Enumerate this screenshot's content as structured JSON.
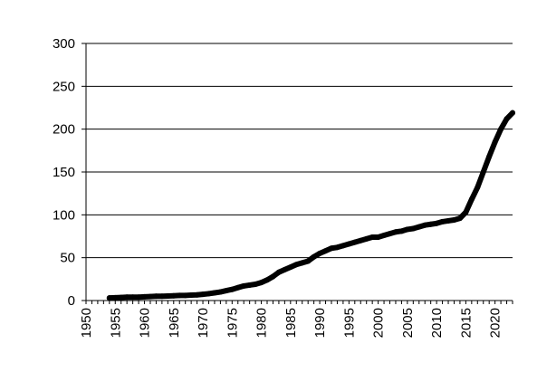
{
  "chart_data": {
    "type": "line",
    "title": "",
    "xlabel": "",
    "ylabel": "",
    "xlim": [
      1950,
      2023
    ],
    "ylim": [
      0,
      300
    ],
    "x_ticks": [
      1950,
      1955,
      1960,
      1965,
      1970,
      1975,
      1980,
      1985,
      1990,
      1995,
      2000,
      2005,
      2010,
      2015,
      2020
    ],
    "y_ticks": [
      0,
      50,
      100,
      150,
      200,
      250,
      300
    ],
    "x_tick_labels": [
      "1950",
      "1955",
      "1960",
      "1965",
      "1970",
      "1975",
      "1980",
      "1985",
      "1990",
      "1995",
      "2000",
      "2005",
      "2010",
      "2015",
      "2020"
    ],
    "y_tick_labels": [
      "0",
      "50",
      "100",
      "150",
      "200",
      "250",
      "300"
    ],
    "grid": {
      "horizontal": true,
      "vertical": false
    },
    "legend": "none",
    "line_color": "#000000",
    "series": [
      {
        "x": [
          1954,
          1955,
          1956,
          1957,
          1958,
          1959,
          1960,
          1961,
          1962,
          1963,
          1964,
          1965,
          1966,
          1967,
          1968,
          1969,
          1970,
          1971,
          1972,
          1973,
          1974,
          1975,
          1976,
          1977,
          1978,
          1979,
          1980,
          1981,
          1982,
          1983,
          1984,
          1985,
          1986,
          1987,
          1988,
          1989,
          1990,
          1991,
          1992,
          1993,
          1994,
          1995,
          1996,
          1997,
          1998,
          1999,
          2000,
          2001,
          2002,
          2003,
          2004,
          2005,
          2006,
          2007,
          2008,
          2009,
          2010,
          2011,
          2012,
          2013,
          2014,
          2015,
          2016,
          2017,
          2018,
          2019,
          2020,
          2021,
          2022,
          2023
        ],
        "values": [
          3,
          3.3,
          3.6,
          4,
          4,
          4,
          4.3,
          4.6,
          5,
          5,
          5.3,
          5.6,
          6,
          6,
          6.3,
          6.6,
          7.3,
          8,
          9,
          10,
          11.5,
          13,
          15,
          17,
          18,
          19,
          21,
          24,
          28,
          33,
          36,
          39,
          42,
          44,
          46,
          51,
          55,
          58,
          61,
          62,
          64,
          66,
          68,
          70,
          72,
          74,
          74,
          76,
          78,
          80,
          81,
          83,
          84,
          86,
          88,
          89,
          90,
          92,
          93,
          94,
          96,
          103,
          118,
          132,
          150,
          168,
          185,
          200,
          212,
          219
        ]
      }
    ]
  }
}
